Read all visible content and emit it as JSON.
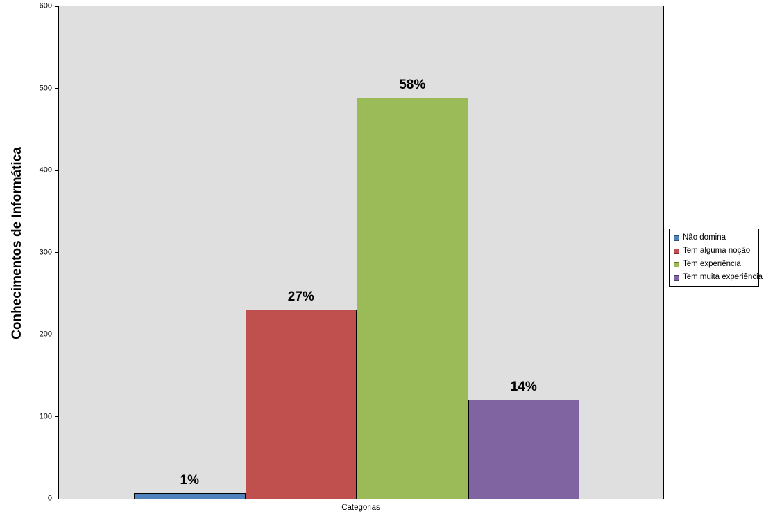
{
  "chart_data": {
    "type": "bar",
    "title": "",
    "ylabel": "Conhecimentos de Informática",
    "xlabel": "Categorias",
    "ylim": [
      0,
      600
    ],
    "yticks": [
      0,
      100,
      200,
      300,
      400,
      500,
      600
    ],
    "grid": false,
    "legend_position": "right",
    "plot_bg_color": "#dfdfdf",
    "axis_color": "#000000",
    "categories": [
      "Categorias"
    ],
    "series": [
      {
        "name": "Não domina",
        "value": 7,
        "data_label": "1%",
        "color": "#4f81bd",
        "legend_border": "#2c4d75"
      },
      {
        "name": "Tem alguma noção",
        "value": 230,
        "data_label": "27%",
        "color": "#c0504d",
        "legend_border": "#772c2a"
      },
      {
        "name": "Tem experiência",
        "value": 489,
        "data_label": "58%",
        "color": "#9bbb59",
        "legend_border": "#5f7530"
      },
      {
        "name": "Tem muita experiência",
        "value": 121,
        "data_label": "14%",
        "color": "#8064a2",
        "legend_border": "#4d3b62"
      }
    ]
  }
}
